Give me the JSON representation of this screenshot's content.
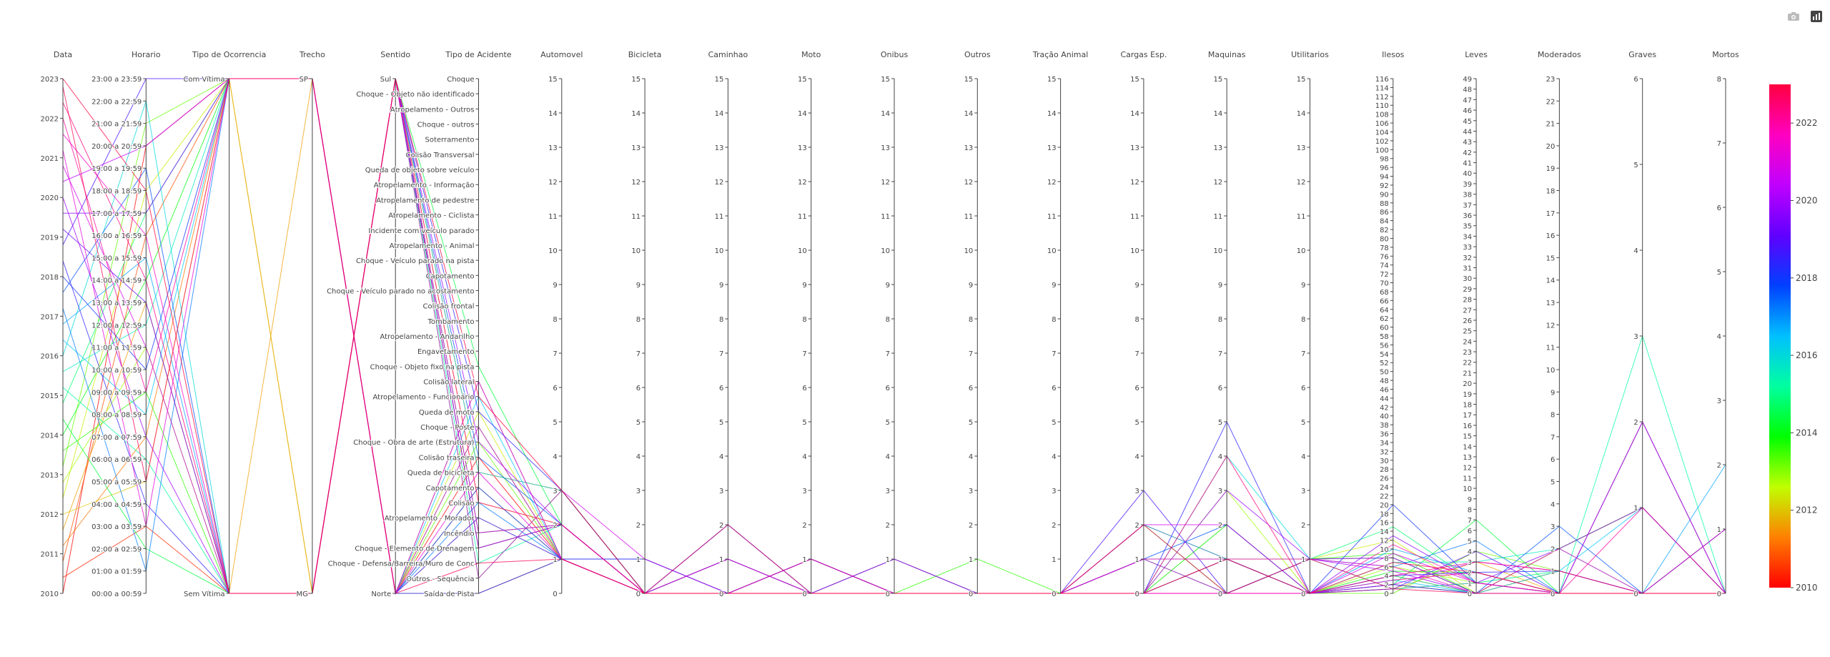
{
  "toolbar": {
    "buttons": [
      {
        "name": "camera-icon"
      },
      {
        "name": "plotly-logo-icon"
      }
    ]
  },
  "chart_data": {
    "type": "parcoords",
    "colorscale": [
      "#ff0000",
      "#ff8000",
      "#c0ff00",
      "#00ff00",
      "#00ffa0",
      "#00c0ff",
      "#0040ff",
      "#6000ff",
      "#c000ff",
      "#ff00c0",
      "#ff0040"
    ],
    "colorbar": {
      "range": [
        2010,
        2023
      ],
      "ticks": [
        "2022",
        "2020",
        "2018",
        "2016",
        "2014",
        "2012",
        "2010"
      ]
    },
    "axes": [
      {
        "label": "Data",
        "range": [
          2010,
          2023
        ],
        "ticks": [
          "2023",
          "2022",
          "2021",
          "2020",
          "2019",
          "2018",
          "2017",
          "2016",
          "2015",
          "2014",
          "2013",
          "2012",
          "2011",
          "2010"
        ]
      },
      {
        "label": "Horario",
        "categories": [
          "23:00 a 23:59",
          "22:00 a 22:59",
          "21:00 a 21:59",
          "20:00 a 20:59",
          "19:00 a 19:59",
          "18:00 a 18:59",
          "17:00 a 17:59",
          "16:00 a 16:59",
          "15:00 a 15:59",
          "14:00 a 14:59",
          "13:00 a 13:59",
          "12:00 a 12:59",
          "11:00 a 11:59",
          "10:00 a 10:59",
          "09:00 a 09:59",
          "08:00 a 08:59",
          "07:00 a 07:59",
          "06:00 a 06:59",
          "05:00 a 05:59",
          "04:00 a 04:59",
          "03:00 a 03:59",
          "02:00 a 02:59",
          "01:00 a 01:59",
          "00:00 a 00:59"
        ]
      },
      {
        "label": "Tipo de Ocorrencia",
        "categories": [
          "Com Vítima",
          "Sem Vítima"
        ]
      },
      {
        "label": "Trecho",
        "categories": [
          "SP",
          "MG"
        ]
      },
      {
        "label": "Sentido",
        "categories": [
          "Sul",
          "Norte"
        ]
      },
      {
        "label": "Tipo de Acidente",
        "categories": [
          "Choque",
          "Choque - Objeto não identificado",
          "Atropelamento - Outros",
          "Choque - outros",
          "Soterramento",
          "Colisão Transversal",
          "Queda de objeto sobre veículo",
          "Atropelamento - Informação",
          "Atropelamento de pedestre",
          "Atropelamento - Ciclista",
          "Incidente com veículo parado",
          "Atropelamento - Animal",
          "Choque - Veículo parado na pista",
          "Capotamento",
          "Choque - Veículo parado no acostamento",
          "Colisão frontal",
          "Tombamento",
          "Atropelamento - Andarilho",
          "Engavetamento",
          "Choque - Objeto fixo na pista",
          "Colisão lateral",
          "Atropelamento - Funcionário",
          "Queda de moto",
          "Choque - Poste",
          "Choque - Obra de arte (Estrutura)",
          "Colisão traseira",
          "Queda de bicicleta",
          "Capotamento",
          "Colisão",
          "Atropelamento - Morador",
          "Incêndio",
          "Choque - Elemento de Drenagem",
          "Choque - Defensa/Barreira/Muro de Conc",
          "Outros - Sequência",
          "Saída de Pista"
        ]
      },
      {
        "label": "Automovel",
        "range": [
          0,
          15
        ]
      },
      {
        "label": "Bicicleta",
        "range": [
          0,
          15
        ]
      },
      {
        "label": "Caminhao",
        "range": [
          0,
          15
        ]
      },
      {
        "label": "Moto",
        "range": [
          0,
          15
        ]
      },
      {
        "label": "Onibus",
        "range": [
          0,
          15
        ]
      },
      {
        "label": "Outros",
        "range": [
          0,
          15
        ]
      },
      {
        "label": "Tração Animal",
        "range": [
          0,
          15
        ]
      },
      {
        "label": "Cargas Esp.",
        "range": [
          0,
          15
        ]
      },
      {
        "label": "Maquinas",
        "range": [
          0,
          15
        ]
      },
      {
        "label": "Utilitarios",
        "range": [
          0,
          15
        ]
      },
      {
        "label": "Ilesos",
        "range": [
          0,
          116
        ]
      },
      {
        "label": "Leves",
        "range": [
          0,
          49
        ]
      },
      {
        "label": "Moderados",
        "range": [
          0,
          23
        ]
      },
      {
        "label": "Graves",
        "range": [
          0,
          6
        ]
      },
      {
        "label": "Mortos",
        "range": [
          0,
          8
        ]
      }
    ],
    "series": [
      {
        "values": [
          2010.0,
          3,
          0,
          0,
          1,
          25,
          1,
          0,
          0,
          0,
          0,
          0,
          0,
          0,
          0,
          0,
          2,
          0,
          0,
          0,
          0
        ]
      },
      {
        "values": [
          2010.4,
          20,
          1,
          1,
          0,
          31,
          2,
          0,
          1,
          0,
          0,
          0,
          0,
          1,
          1,
          0,
          4,
          0,
          1,
          0,
          0
        ]
      },
      {
        "values": [
          2010.8,
          7,
          0,
          0,
          1,
          34,
          1,
          0,
          0,
          1,
          0,
          0,
          0,
          0,
          0,
          0,
          1,
          1,
          0,
          0,
          0
        ]
      },
      {
        "values": [
          2011.2,
          16,
          0,
          1,
          0,
          26,
          3,
          0,
          2,
          0,
          0,
          0,
          0,
          2,
          1,
          1,
          8,
          0,
          2,
          1,
          0
        ]
      },
      {
        "values": [
          2011.6,
          10,
          1,
          0,
          1,
          20,
          1,
          0,
          0,
          0,
          0,
          0,
          0,
          0,
          0,
          0,
          1,
          3,
          0,
          0,
          1
        ]
      },
      {
        "values": [
          2012.0,
          18,
          0,
          1,
          0,
          28,
          2,
          0,
          0,
          0,
          1,
          0,
          0,
          0,
          2,
          0,
          3,
          2,
          0,
          2,
          0
        ]
      },
      {
        "values": [
          2012.4,
          5,
          0,
          0,
          1,
          22,
          1,
          0,
          1,
          0,
          0,
          0,
          0,
          1,
          0,
          1,
          12,
          0,
          1,
          0,
          0
        ]
      },
      {
        "values": [
          2012.8,
          12,
          1,
          1,
          0,
          30,
          2,
          0,
          0,
          1,
          0,
          0,
          0,
          0,
          3,
          0,
          6,
          1,
          0,
          0,
          0
        ]
      },
      {
        "values": [
          2013.2,
          2,
          0,
          0,
          1,
          24,
          1,
          0,
          0,
          0,
          0,
          0,
          0,
          0,
          0,
          0,
          0,
          4,
          1,
          0,
          0
        ]
      },
      {
        "values": [
          2013.6,
          14,
          1,
          1,
          0,
          33,
          3,
          0,
          1,
          0,
          0,
          1,
          0,
          0,
          1,
          1,
          9,
          0,
          2,
          1,
          0
        ]
      },
      {
        "values": [
          2014.0,
          9,
          0,
          0,
          1,
          27,
          1,
          1,
          0,
          0,
          0,
          0,
          0,
          2,
          0,
          0,
          5,
          2,
          0,
          0,
          1
        ]
      },
      {
        "values": [
          2014.4,
          21,
          1,
          1,
          0,
          19,
          2,
          0,
          0,
          1,
          0,
          0,
          0,
          0,
          2,
          0,
          2,
          7,
          0,
          0,
          0
        ]
      },
      {
        "values": [
          2014.8,
          6,
          0,
          0,
          1,
          29,
          1,
          0,
          0,
          0,
          1,
          0,
          0,
          0,
          0,
          1,
          15,
          1,
          1,
          0,
          0
        ]
      },
      {
        "values": [
          2015.2,
          17,
          1,
          1,
          0,
          32,
          2,
          0,
          2,
          0,
          0,
          0,
          0,
          1,
          1,
          0,
          4,
          0,
          0,
          3,
          0
        ]
      },
      {
        "values": [
          2015.6,
          11,
          0,
          0,
          1,
          23,
          1,
          0,
          0,
          0,
          0,
          0,
          0,
          0,
          0,
          0,
          7,
          3,
          2,
          0,
          0
        ]
      },
      {
        "values": [
          2016.0,
          1,
          1,
          1,
          0,
          26,
          3,
          0,
          0,
          1,
          0,
          0,
          0,
          0,
          4,
          1,
          1,
          1,
          0,
          0,
          0
        ]
      },
      {
        "values": [
          2016.4,
          15,
          0,
          0,
          1,
          21,
          1,
          1,
          0,
          0,
          0,
          0,
          0,
          0,
          0,
          0,
          3,
          0,
          1,
          1,
          0
        ]
      },
      {
        "values": [
          2016.8,
          8,
          1,
          1,
          0,
          30,
          2,
          0,
          1,
          0,
          0,
          0,
          0,
          2,
          1,
          0,
          10,
          2,
          0,
          0,
          2
        ]
      },
      {
        "values": [
          2017.2,
          22,
          0,
          0,
          1,
          28,
          1,
          0,
          0,
          0,
          0,
          0,
          0,
          0,
          0,
          1,
          6,
          5,
          0,
          0,
          0
        ]
      },
      {
        "values": [
          2017.6,
          4,
          1,
          1,
          0,
          25,
          2,
          0,
          0,
          0,
          1,
          0,
          0,
          1,
          2,
          0,
          2,
          0,
          3,
          0,
          0
        ]
      },
      {
        "values": [
          2018.0,
          13,
          0,
          0,
          1,
          34,
          1,
          0,
          0,
          1,
          0,
          0,
          0,
          0,
          0,
          0,
          20,
          1,
          0,
          2,
          0
        ]
      },
      {
        "values": [
          2018.4,
          19,
          1,
          1,
          0,
          22,
          3,
          0,
          2,
          0,
          0,
          0,
          0,
          0,
          5,
          0,
          4,
          2,
          1,
          0,
          0
        ]
      },
      {
        "values": [
          2018.8,
          0,
          0,
          0,
          1,
          27,
          1,
          1,
          0,
          0,
          0,
          0,
          0,
          3,
          0,
          1,
          8,
          0,
          0,
          0,
          1
        ]
      },
      {
        "values": [
          2019.2,
          10,
          1,
          1,
          0,
          31,
          2,
          0,
          0,
          0,
          0,
          0,
          0,
          0,
          1,
          0,
          1,
          4,
          0,
          0,
          0
        ]
      },
      {
        "values": [
          2019.6,
          6,
          0,
          0,
          1,
          29,
          1,
          0,
          1,
          0,
          0,
          0,
          0,
          1,
          0,
          0,
          13,
          1,
          2,
          1,
          0
        ]
      },
      {
        "values": [
          2020.0,
          16,
          1,
          1,
          0,
          24,
          2,
          0,
          0,
          1,
          0,
          0,
          0,
          0,
          3,
          1,
          5,
          0,
          0,
          0,
          0
        ]
      },
      {
        "values": [
          2020.4,
          3,
          0,
          0,
          1,
          20,
          1,
          0,
          0,
          0,
          0,
          0,
          0,
          0,
          0,
          0,
          2,
          3,
          1,
          0,
          0
        ]
      },
      {
        "values": [
          2020.8,
          12,
          1,
          1,
          0,
          33,
          3,
          1,
          0,
          0,
          1,
          0,
          0,
          2,
          2,
          0,
          9,
          1,
          0,
          2,
          0
        ]
      },
      {
        "values": [
          2021.2,
          20,
          0,
          0,
          1,
          26,
          1,
          0,
          1,
          0,
          0,
          0,
          0,
          0,
          0,
          0,
          3,
          2,
          0,
          0,
          1
        ]
      },
      {
        "values": [
          2021.6,
          7,
          1,
          1,
          0,
          30,
          2,
          0,
          0,
          0,
          0,
          0,
          0,
          1,
          1,
          1,
          6,
          0,
          2,
          0,
          0
        ]
      },
      {
        "values": [
          2022.0,
          14,
          0,
          0,
          1,
          23,
          1,
          0,
          0,
          1,
          0,
          0,
          0,
          0,
          0,
          0,
          11,
          1,
          0,
          1,
          0
        ]
      },
      {
        "values": [
          2022.4,
          9,
          1,
          1,
          0,
          28,
          2,
          0,
          2,
          0,
          0,
          0,
          0,
          0,
          4,
          0,
          4,
          3,
          1,
          0,
          0
        ]
      },
      {
        "values": [
          2022.8,
          18,
          0,
          0,
          1,
          32,
          1,
          0,
          0,
          0,
          0,
          0,
          0,
          2,
          0,
          1,
          1,
          0,
          0,
          0,
          0
        ]
      },
      {
        "values": [
          2023.0,
          5,
          1,
          1,
          0,
          21,
          3,
          0,
          0,
          0,
          0,
          0,
          0,
          0,
          1,
          0,
          7,
          2,
          0,
          0,
          0
        ]
      }
    ]
  }
}
